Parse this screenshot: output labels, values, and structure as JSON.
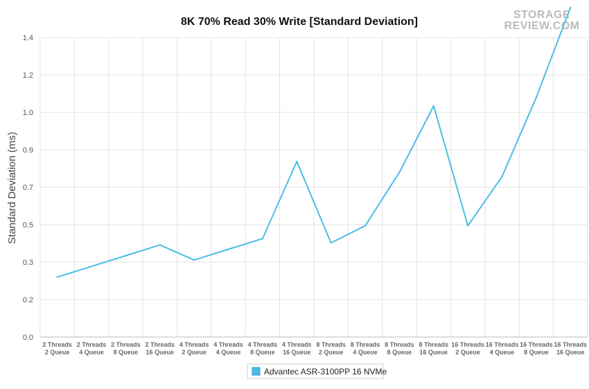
{
  "chart_data": {
    "type": "line",
    "title": "8K 70% Read 30% Write [Standard Deviation]",
    "ylabel": "Standard Deviation (ms)",
    "xlabel": "",
    "ylim": [
      0,
      1.4
    ],
    "yticks": [
      "0.0",
      "0.2",
      "0.3",
      "0.5",
      "0.7",
      "0.9",
      "1.0",
      "1.2",
      "1.4"
    ],
    "grid": true,
    "legend_position": "bottom-center",
    "categories": [
      [
        "2 Threads",
        "2 Queue"
      ],
      [
        "2 Threads",
        "4 Queue"
      ],
      [
        "2 Threads",
        "8 Queue"
      ],
      [
        "2 Threads",
        "16 Queue"
      ],
      [
        "4 Threads",
        "2 Queue"
      ],
      [
        "4 Threads",
        "4 Queue"
      ],
      [
        "4 Threads",
        "8 Queue"
      ],
      [
        "4 Threads",
        "16 Queue"
      ],
      [
        "8 Threads",
        "2 Queue"
      ],
      [
        "8 Threads",
        "4 Queue"
      ],
      [
        "8 Threads",
        "8 Queue"
      ],
      [
        "8 Threads",
        "16 Queue"
      ],
      [
        "16 Threads",
        "2 Queue"
      ],
      [
        "16 Threads",
        "4 Queue"
      ],
      [
        "16 Threads",
        "8 Queue"
      ],
      [
        "16 Threads",
        "16 Queue"
      ]
    ],
    "series": [
      {
        "name": "Advantec ASR-3100PP 16 NVMe",
        "color": "#4bbde8",
        "values": [
          0.28,
          0.33,
          0.38,
          0.43,
          0.36,
          0.41,
          0.46,
          0.82,
          0.44,
          0.52,
          0.77,
          1.08,
          0.52,
          0.75,
          1.12,
          1.54
        ]
      }
    ]
  },
  "logo": {
    "line1": "STORAGE",
    "line2": "REVIEW.COM"
  }
}
